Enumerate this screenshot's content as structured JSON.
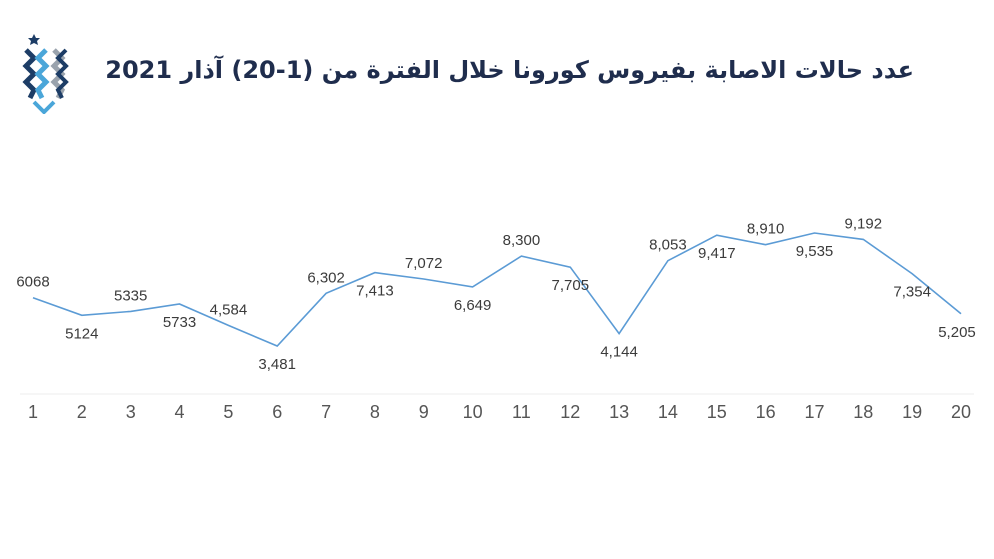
{
  "title": "عدد حالات الاصابة بفيروس كورونا خلال الفترة من (1-20) آذار 2021",
  "logo": {
    "icon": "jordan-news-logo",
    "colors": {
      "dark": "#1d3d66",
      "light": "#4aa6d9",
      "grey": "#9aa3ad"
    }
  },
  "chart_data": {
    "type": "line",
    "title": "عدد حالات الاصابة بفيروس كورونا خلال الفترة من (1-20) آذار 2021",
    "categories": [
      "1",
      "2",
      "3",
      "4",
      "5",
      "6",
      "7",
      "8",
      "9",
      "10",
      "11",
      "12",
      "13",
      "14",
      "15",
      "16",
      "17",
      "18",
      "19",
      "20"
    ],
    "values": [
      6068,
      5124,
      5335,
      5733,
      4584,
      3481,
      6302,
      7413,
      7072,
      6649,
      8300,
      7705,
      4144,
      8053,
      9417,
      8910,
      9535,
      9192,
      7354,
      5205
    ],
    "labels": [
      "6068",
      "5124",
      "5335",
      "5733",
      "4,584",
      "3,481",
      "6,302",
      "7,413",
      "7,072",
      "6,649",
      "8,300",
      "7,705",
      "4,144",
      "8,053",
      "9,417",
      "8,910",
      "9,535",
      "9,192",
      "7,354",
      "5,205"
    ],
    "label_position": [
      "above",
      "below",
      "above",
      "below",
      "above",
      "below",
      "above",
      "below",
      "above",
      "below",
      "above",
      "below",
      "below",
      "above",
      "below",
      "above",
      "below",
      "above",
      "below",
      "below"
    ],
    "xlabel": "",
    "ylabel": "",
    "grid": false,
    "line_color": "#5b9bd5"
  }
}
